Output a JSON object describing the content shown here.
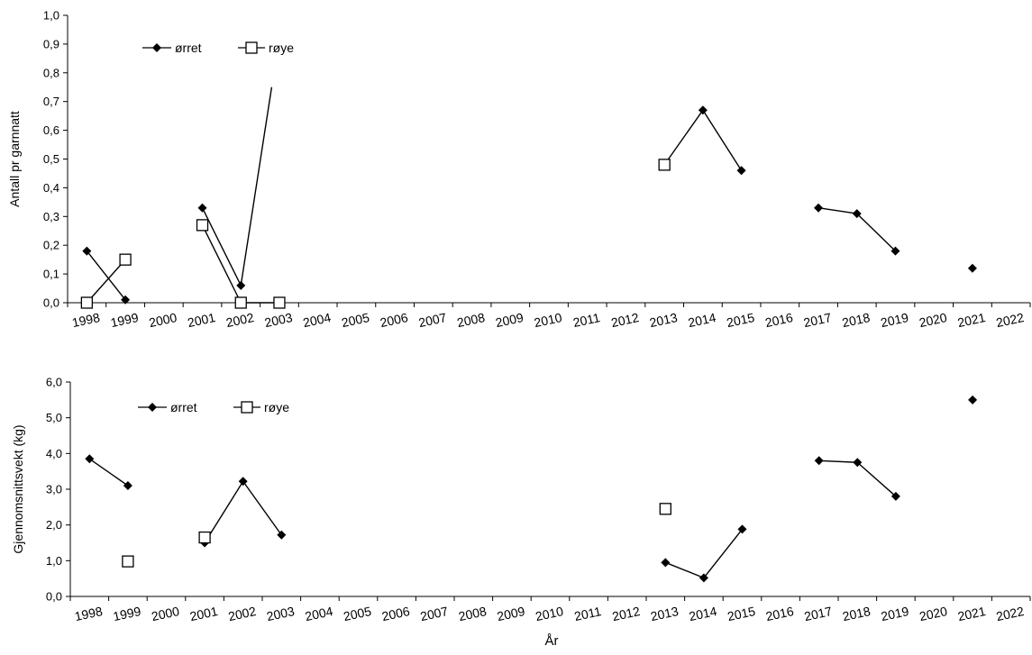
{
  "xlabel": "År",
  "years": [
    "1998",
    "1999",
    "2000",
    "2001",
    "2002",
    "2003",
    "2004",
    "2005",
    "2006",
    "2007",
    "2008",
    "2009",
    "2010",
    "2011",
    "2012",
    "2013",
    "2014",
    "2015",
    "2016",
    "2017",
    "2018",
    "2019",
    "2020",
    "2021",
    "2022"
  ],
  "chart_data": [
    {
      "type": "line",
      "title": "",
      "ylabel": "Antall pr garnnatt",
      "xlabel": "",
      "ylim": [
        0,
        1.0
      ],
      "yticks": [
        "0,0",
        "0,1",
        "0,2",
        "0,3",
        "0,4",
        "0,5",
        "0,6",
        "0,7",
        "0,8",
        "0,9",
        "1,0"
      ],
      "grid": false,
      "legend_position": "top-left",
      "series": [
        {
          "name": "ørret",
          "marker": "filled-diamond",
          "points": [
            {
              "x": 1998.5,
              "y": 0.18
            },
            {
              "x": 1999.5,
              "y": 0.01
            },
            {
              "x": 2001.5,
              "y": 0.33
            },
            {
              "x": 2002.5,
              "y": 0.06
            },
            {
              "x": 2013.5,
              "y": 0.48
            },
            {
              "x": 2014.5,
              "y": 0.67
            },
            {
              "x": 2015.5,
              "y": 0.46
            },
            {
              "x": 2017.5,
              "y": 0.33
            },
            {
              "x": 2018.5,
              "y": 0.31
            },
            {
              "x": 2019.5,
              "y": 0.18
            },
            {
              "x": 2021.5,
              "y": 0.12
            }
          ],
          "segments": [
            [
              0,
              1
            ],
            [
              2,
              3
            ],
            [
              4,
              5
            ],
            [
              5,
              6
            ],
            [
              7,
              8
            ],
            [
              8,
              9
            ]
          ]
        },
        {
          "name": "røye",
          "marker": "open-square",
          "points": [
            {
              "x": 1998.5,
              "y": 0.0
            },
            {
              "x": 1999.5,
              "y": 0.15
            },
            {
              "x": 2001.5,
              "y": 0.27
            },
            {
              "x": 2002.5,
              "y": 0.0
            },
            {
              "x": 2003.5,
              "y": 0.0
            },
            {
              "x": 2013.5,
              "y": 0.48
            }
          ],
          "segments": [
            [
              0,
              1
            ],
            [
              2,
              3
            ],
            [
              3,
              4
            ]
          ]
        }
      ],
      "extra_lines": [
        {
          "from": {
            "x": 2002.5,
            "y": 0.06
          },
          "to": {
            "x": 2003.3,
            "y": 0.75
          }
        }
      ]
    },
    {
      "type": "line",
      "title": "",
      "ylabel": "Gjennomsnittsvekt (kg)",
      "xlabel": "År",
      "ylim": [
        0,
        6.0
      ],
      "yticks": [
        "0,0",
        "1,0",
        "2,0",
        "3,0",
        "4,0",
        "5,0",
        "6,0"
      ],
      "grid": false,
      "legend_position": "top-left",
      "series": [
        {
          "name": "ørret",
          "marker": "filled-diamond",
          "points": [
            {
              "x": 1998.5,
              "y": 3.85
            },
            {
              "x": 1999.5,
              "y": 3.1
            },
            {
              "x": 2001.5,
              "y": 1.5
            },
            {
              "x": 2002.5,
              "y": 3.22
            },
            {
              "x": 2003.5,
              "y": 1.72
            },
            {
              "x": 2013.5,
              "y": 0.95
            },
            {
              "x": 2014.5,
              "y": 0.52
            },
            {
              "x": 2015.5,
              "y": 1.88
            },
            {
              "x": 2017.5,
              "y": 3.8
            },
            {
              "x": 2018.5,
              "y": 3.75
            },
            {
              "x": 2019.5,
              "y": 2.8
            },
            {
              "x": 2021.5,
              "y": 5.5
            }
          ],
          "segments": [
            [
              0,
              1
            ],
            [
              2,
              3
            ],
            [
              3,
              4
            ],
            [
              5,
              6
            ],
            [
              6,
              7
            ],
            [
              8,
              9
            ],
            [
              9,
              10
            ]
          ]
        },
        {
          "name": "røye",
          "marker": "open-square",
          "points": [
            {
              "x": 1999.5,
              "y": 0.98
            },
            {
              "x": 2001.5,
              "y": 1.65
            },
            {
              "x": 2013.5,
              "y": 2.45
            }
          ],
          "segments": []
        }
      ],
      "extra_lines": []
    }
  ]
}
